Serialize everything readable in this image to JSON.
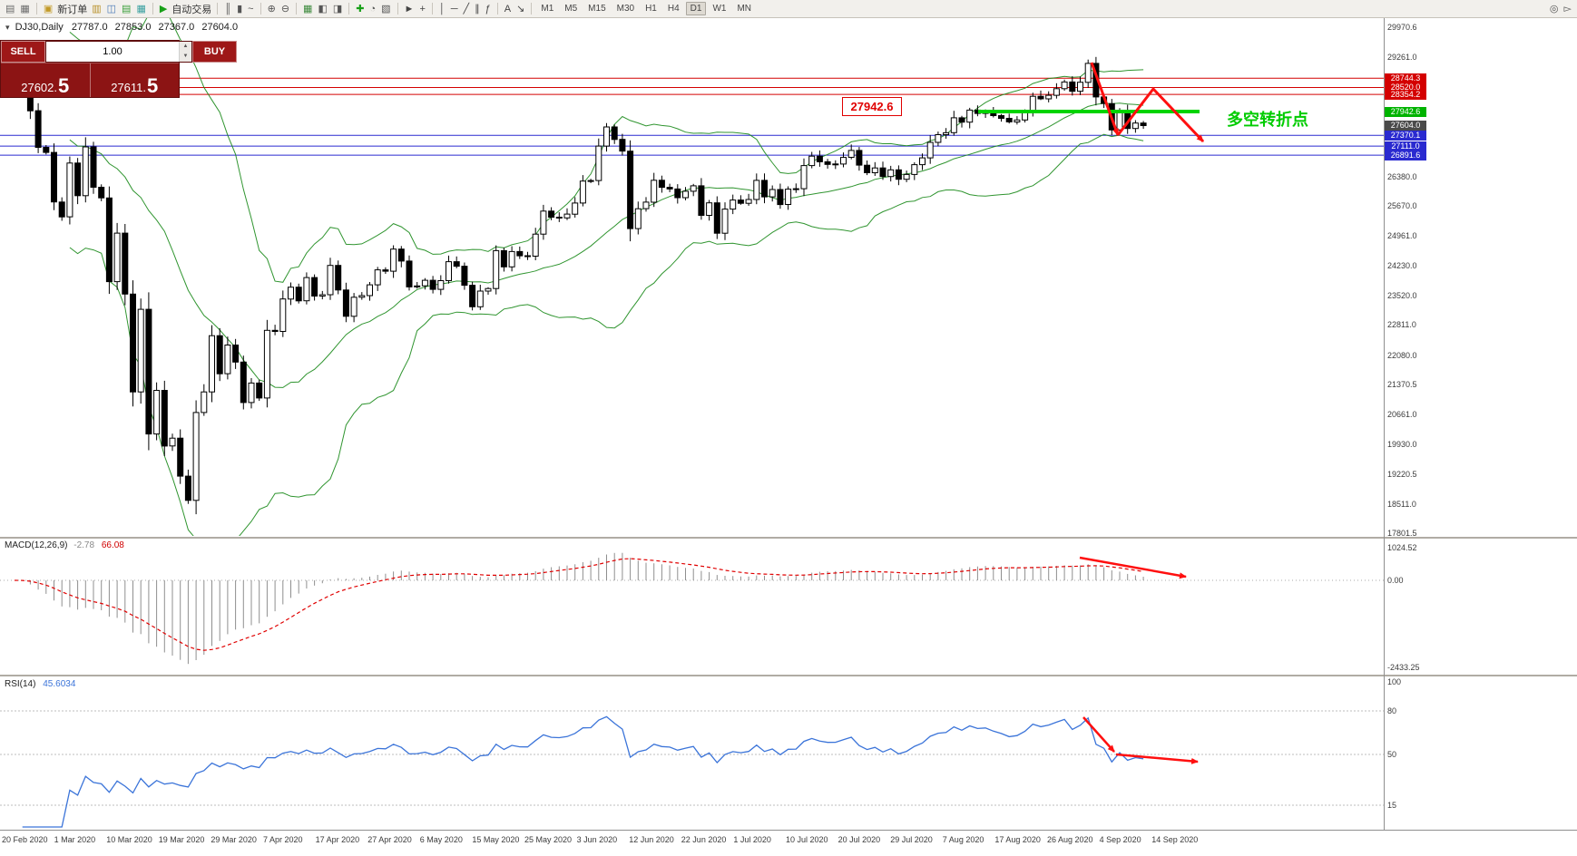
{
  "toolbar": {
    "items": [
      {
        "type": "icon",
        "name": "new-chart-icon",
        "glyph": "▤",
        "color": "#6b6b6b"
      },
      {
        "type": "icon",
        "name": "chart-profiles-icon",
        "glyph": "▦",
        "color": "#6b6b6b"
      },
      {
        "type": "sep"
      },
      {
        "type": "icon",
        "name": "new-order-icon",
        "glyph": "▣",
        "color": "#c29a28"
      },
      {
        "type": "label",
        "name": "new-order-button",
        "text": "新订单"
      },
      {
        "type": "icon",
        "name": "market-watch-icon",
        "glyph": "▥",
        "color": "#b8912a"
      },
      {
        "type": "icon",
        "name": "data-window-icon",
        "glyph": "◫",
        "color": "#4a7ab8"
      },
      {
        "type": "icon",
        "name": "navigator-icon",
        "glyph": "▤",
        "color": "#3da03d"
      },
      {
        "type": "icon",
        "name": "toolbox-icon",
        "glyph": "▦",
        "color": "#3aa0a0"
      },
      {
        "type": "sep"
      },
      {
        "type": "icon",
        "name": "algo-trading-icon",
        "glyph": "▶",
        "color": "#18a018"
      },
      {
        "type": "label",
        "name": "algo-trading-button",
        "text": "自动交易"
      },
      {
        "type": "sep"
      },
      {
        "type": "icon",
        "name": "bars-chart-icon",
        "glyph": "║",
        "color": "#555555"
      },
      {
        "type": "icon",
        "name": "candles-chart-icon",
        "glyph": "▮",
        "color": "#555555"
      },
      {
        "type": "icon",
        "name": "line-chart-icon",
        "glyph": "~",
        "color": "#555555"
      },
      {
        "type": "sep"
      },
      {
        "type": "icon",
        "name": "zoom-in-icon",
        "glyph": "⊕",
        "color": "#555555"
      },
      {
        "type": "icon",
        "name": "zoom-out-icon",
        "glyph": "⊖",
        "color": "#555555"
      },
      {
        "type": "sep"
      },
      {
        "type": "icon",
        "name": "tile-windows-icon",
        "glyph": "▦",
        "color": "#3d8a3d"
      },
      {
        "type": "icon",
        "name": "auto-arrange-icon",
        "glyph": "◧",
        "color": "#555555"
      },
      {
        "type": "icon",
        "name": "chart-shift-icon",
        "glyph": "◨",
        "color": "#555555"
      },
      {
        "type": "sep"
      },
      {
        "type": "icon",
        "name": "add-indicator-icon",
        "glyph": "✚",
        "color": "#18a018"
      },
      {
        "type": "icon",
        "name": "period-menu-icon",
        "glyph": "◔",
        "color": "#555555"
      },
      {
        "type": "icon",
        "name": "template-icon",
        "glyph": "▧",
        "color": "#555555"
      },
      {
        "type": "sep"
      },
      {
        "type": "icon",
        "name": "cursor-icon",
        "glyph": "►",
        "color": "#444444"
      },
      {
        "type": "icon",
        "name": "crosshair-icon",
        "glyph": "+",
        "color": "#444444"
      },
      {
        "type": "sep"
      },
      {
        "type": "icon",
        "name": "vertical-line-icon",
        "glyph": "│",
        "color": "#444444"
      },
      {
        "type": "icon",
        "name": "horizontal-line-icon",
        "glyph": "─",
        "color": "#444444"
      },
      {
        "type": "icon",
        "name": "trendline-icon",
        "glyph": "╱",
        "color": "#444444"
      },
      {
        "type": "icon",
        "name": "channel-icon",
        "glyph": "∥",
        "color": "#444444"
      },
      {
        "type": "icon",
        "name": "fibonacci-icon",
        "glyph": "ƒ",
        "color": "#444444"
      },
      {
        "type": "sep"
      },
      {
        "type": "icon",
        "name": "text-tool-icon",
        "glyph": "A",
        "color": "#444444"
      },
      {
        "type": "icon",
        "name": "arrows-tool-icon",
        "glyph": "↘",
        "color": "#444444"
      },
      {
        "type": "sep"
      }
    ],
    "timeframes": [
      "M1",
      "M5",
      "M15",
      "M30",
      "H1",
      "H4",
      "D1",
      "W1",
      "MN"
    ],
    "active_timeframe": "D1",
    "right_icons": [
      {
        "name": "search-icon",
        "glyph": "◎",
        "color": "#555555"
      },
      {
        "name": "pointer-icon",
        "glyph": "▻",
        "color": "#555555"
      }
    ]
  },
  "title": {
    "symbol_period": "DJ30,Daily",
    "open": "27787.0",
    "high": "27853.0",
    "low": "27367.0",
    "close": "27604.0"
  },
  "trade": {
    "sell_label": "SELL",
    "buy_label": "BUY",
    "volume": "1.00",
    "sell_price_main": "27602.",
    "sell_price_big": "5",
    "buy_price_main": "27611.",
    "buy_price_big": "5"
  },
  "annotations": {
    "price_note": "27942.6",
    "cn_note": "多空转折点"
  },
  "indicators": {
    "macd": {
      "label": "MACD(12,26,9)",
      "main_value": "-2.78",
      "signal_value": "66.08",
      "axis": [
        "1024.52",
        "0.00",
        "-2433.25"
      ]
    },
    "rsi": {
      "label": "RSI(14)",
      "value": "45.6034",
      "axis": [
        "100",
        "80",
        "50",
        "15"
      ],
      "levels": [
        80,
        50,
        15
      ]
    }
  },
  "price_axis": {
    "ticks": [
      "29970.6",
      "29261.0",
      "26380.0",
      "25670.0",
      "24961.0",
      "24230.0",
      "23520.0",
      "22811.0",
      "22080.0",
      "21370.5",
      "20661.0",
      "19930.0",
      "19220.5",
      "18511.0",
      "17801.5"
    ],
    "special": [
      {
        "text": "28744.3",
        "color": "#d40000"
      },
      {
        "text": "28520.0",
        "color": "#d40000"
      },
      {
        "text": "28354.2",
        "color": "#d40000"
      },
      {
        "text": "27942.6",
        "color": "#00b300"
      },
      {
        "text": "27604.0",
        "color": "#4a4a4a"
      },
      {
        "text": "27370.1",
        "color": "#2a2ad0"
      },
      {
        "text": "27111.0",
        "color": "#2a2ad0"
      },
      {
        "text": "26891.6",
        "color": "#2a2ad0"
      }
    ]
  },
  "levels": {
    "red": [
      28744.3,
      28520.0,
      28354.2
    ],
    "blue": [
      27370.1,
      27111.0,
      26891.6
    ],
    "green": 27942.6
  },
  "date_axis": [
    "20 Feb 2020",
    "1 Mar 2020",
    "10 Mar 2020",
    "19 Mar 2020",
    "29 Mar 2020",
    "7 Apr 2020",
    "17 Apr 2020",
    "27 Apr 2020",
    "6 May 2020",
    "15 May 2020",
    "25 May 2020",
    "3 Jun 2020",
    "12 Jun 2020",
    "22 Jun 2020",
    "1 Jul 2020",
    "10 Jul 2020",
    "20 Jul 2020",
    "29 Jul 2020",
    "7 Aug 2020",
    "17 Aug 2020",
    "26 Aug 2020",
    "4 Sep 2020",
    "14 Sep 2020"
  ],
  "chart_data": {
    "type": "candlestick",
    "symbol": "DJ30",
    "timeframe": "Daily",
    "overlays": [
      "Bollinger Bands (20, 2.0)"
    ],
    "sub_charts": [
      "MACD(12,26,9)",
      "RSI(14)"
    ],
    "y_range": [
      17801.5,
      29970.6
    ],
    "ohlc_last": {
      "open": 27787.0,
      "high": 27853.0,
      "low": 27367.0,
      "close": 27604.0
    },
    "first_open": 29348,
    "closes": [
      29220,
      28992,
      27961,
      27081,
      26958,
      25767,
      25409,
      26703,
      25917,
      27091,
      26121,
      25865,
      23851,
      25018,
      23553,
      21200,
      23186,
      20188,
      21237,
      19899,
      20087,
      19174,
      18592,
      20705,
      21200,
      22552,
      21637,
      22327,
      21917,
      20944,
      21413,
      21053,
      22680,
      22654,
      23434,
      23719,
      23390,
      23949,
      23504,
      23537,
      24242,
      23650,
      23018,
      23476,
      23515,
      23775,
      24134,
      24102,
      24634,
      24346,
      23724,
      23749,
      23883,
      23665,
      23875,
      24331,
      24222,
      23765,
      23248,
      23625,
      23685,
      24597,
      24207,
      24576,
      24474,
      24465,
      24995,
      25548,
      25401,
      25383,
      25475,
      25743,
      26270,
      26282,
      27111,
      27572,
      27272,
      26990,
      25128,
      25605,
      25763,
      26290,
      26120,
      26080,
      25871,
      26025,
      26156,
      25446,
      25746,
      25016,
      25596,
      25813,
      25735,
      25827,
      26287,
      25890,
      26067,
      25706,
      26075,
      26086,
      26643,
      26870,
      26735,
      26672,
      26681,
      26840,
      27006,
      26652,
      26470,
      26585,
      26379,
      26540,
      26313,
      26428,
      26664,
      26828,
      27202,
      27387,
      27433,
      27791,
      27687,
      27977,
      27897,
      27931,
      27844,
      27778,
      27693,
      27740,
      27930,
      28308,
      28248,
      28332,
      28492,
      28654,
      28430,
      28646,
      29101,
      28293,
      28133,
      27501,
      27940,
      27535,
      27666,
      27604
    ]
  },
  "colors": {
    "line_red": "#d40000",
    "line_blue": "#2a2ad0",
    "line_green": "#00d400",
    "bollinger": "#1a8a1a",
    "macd_hist": "#8f8f8f",
    "macd_signal": "#e00000",
    "rsi_line": "#3b74d9",
    "arrow": "#ff0f0f",
    "bull": "#ffffff",
    "bear": "#000000"
  }
}
